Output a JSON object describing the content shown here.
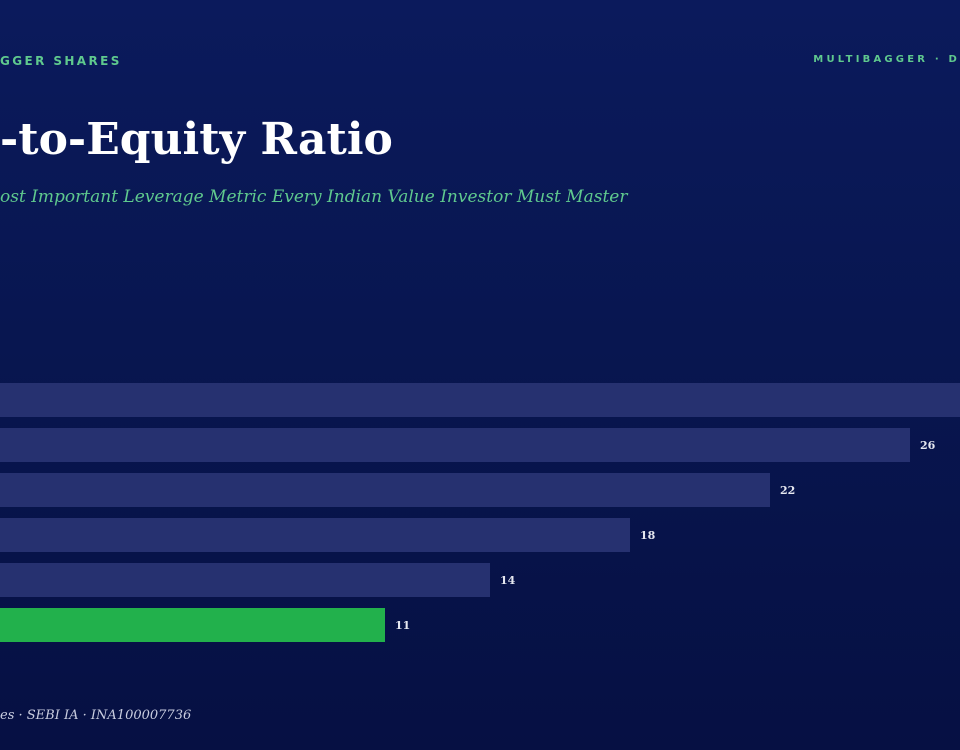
{
  "header": {
    "brand_left": "GGER SHARES",
    "brand_right": "MULTIBAGGER · D"
  },
  "title": "-to-Equity Ratio",
  "subtitle": "ost Important Leverage Metric Every Indian Value Investor Must Master",
  "footer": "es · SEBI IA · INA100007736",
  "colors": {
    "bar": "#263170",
    "highlight": "#22b14c",
    "label": "#e6e8f0"
  },
  "chart_data": {
    "type": "bar",
    "orientation": "horizontal",
    "values": [
      30,
      26,
      22,
      18,
      14,
      11
    ],
    "data_labels": [
      "",
      "26",
      "22",
      "18",
      "14",
      "11"
    ],
    "highlight_index": 5
  }
}
